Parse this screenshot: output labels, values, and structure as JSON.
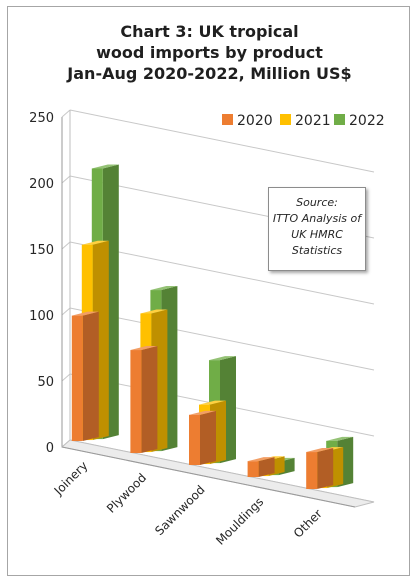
{
  "chart_data": {
    "type": "bar",
    "title_lines": [
      "Chart 3: UK tropical",
      "wood imports by product",
      "Jan-Aug 2020-2022, Million US$"
    ],
    "categories": [
      "Joinery",
      "Plywood",
      "Sawnwood",
      "Mouldings",
      "Other"
    ],
    "series": [
      {
        "name": "2020",
        "color": "#ed7d31",
        "values": [
          95,
          78,
          38,
          12,
          28
        ]
      },
      {
        "name": "2021",
        "color": "#ffc000",
        "values": [
          148,
          105,
          45,
          12,
          28
        ]
      },
      {
        "name": "2022",
        "color": "#70ad47",
        "values": [
          205,
          122,
          78,
          10,
          35
        ]
      }
    ],
    "yticks": [
      0,
      50,
      100,
      150,
      200,
      250
    ],
    "ylim": [
      0,
      250
    ],
    "legend_position": "top-right",
    "grid": true
  },
  "source_note": [
    "Source:",
    "ITTO Analysis of",
    "UK HMRC",
    "Statistics"
  ]
}
